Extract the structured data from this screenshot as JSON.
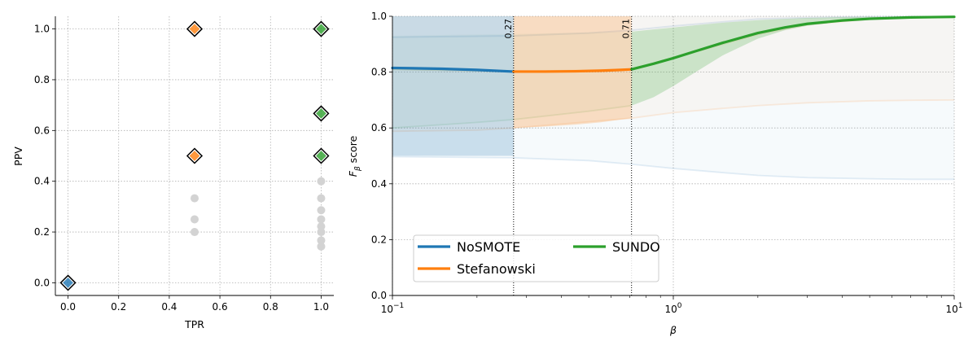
{
  "chart_data": [
    {
      "type": "scatter",
      "xlabel": "TPR",
      "ylabel": "PPV",
      "xlim": [
        -0.05,
        1.05
      ],
      "ylim": [
        -0.05,
        1.05
      ],
      "xticks": [
        "0.0",
        "0.2",
        "0.4",
        "0.6",
        "0.8",
        "1.0"
      ],
      "yticks": [
        "0.0",
        "0.2",
        "0.4",
        "0.6",
        "0.8",
        "1.0"
      ],
      "grid": true,
      "gray_points": [
        [
          0.5,
          0.333
        ],
        [
          0.5,
          0.25
        ],
        [
          0.5,
          0.2
        ],
        [
          1.0,
          0.4
        ],
        [
          1.0,
          0.333
        ],
        [
          1.0,
          0.286
        ],
        [
          1.0,
          0.25
        ],
        [
          1.0,
          0.222
        ],
        [
          1.0,
          0.2
        ],
        [
          1.0,
          0.167
        ],
        [
          1.0,
          0.143
        ]
      ],
      "series": [
        {
          "color": "#1f77b4",
          "points": [
            [
              0.0,
              0.0
            ]
          ]
        },
        {
          "color": "#ff7f0e",
          "points": [
            [
              0.5,
              1.0
            ],
            [
              0.5,
              0.5
            ]
          ]
        },
        {
          "color": "#2ca02c",
          "points": [
            [
              1.0,
              1.0
            ],
            [
              1.0,
              0.667
            ],
            [
              1.0,
              0.5
            ]
          ]
        }
      ]
    },
    {
      "type": "line",
      "xlabel": "β",
      "ylabel": "F",
      "ylabel_sub": "β",
      "ylabel_suffix": " score",
      "xscale": "log",
      "xlim": [
        0.1,
        10
      ],
      "ylim": [
        0.0,
        1.0
      ],
      "xticks": [
        {
          "value": 0.1,
          "base": "10",
          "exp": "−1"
        },
        {
          "value": 1,
          "base": "10",
          "exp": "0"
        },
        {
          "value": 10,
          "base": "10",
          "exp": "1"
        }
      ],
      "yticks": [
        "0.0",
        "0.2",
        "0.4",
        "0.6",
        "0.8",
        "1.0"
      ],
      "grid": true,
      "vlines": [
        {
          "x": 0.27,
          "label": "0.27"
        },
        {
          "x": 0.71,
          "label": "0.71"
        }
      ],
      "legend_position": "lower-left",
      "series": [
        {
          "name": "NoSMOTE",
          "color": "#1f77b4",
          "beta": [
            0.1,
            0.15,
            0.2,
            0.27
          ],
          "mean": [
            0.815,
            0.812,
            0.808,
            0.802
          ],
          "lower": [
            0.5,
            0.5,
            0.5,
            0.5
          ],
          "upper": [
            1.0,
            1.0,
            1.0,
            1.0
          ],
          "faint_beta": [
            0.1,
            0.27,
            0.5,
            0.71,
            1,
            1.5,
            2,
            3,
            5,
            7,
            10
          ],
          "faint_mean": [
            0.925,
            0.93,
            0.94,
            0.95,
            0.965,
            0.98,
            0.99,
            0.995,
            0.998,
            0.999,
            0.999
          ],
          "faint_lower": [
            0.497,
            0.493,
            0.483,
            0.47,
            0.455,
            0.44,
            0.43,
            0.422,
            0.418,
            0.416,
            0.416
          ],
          "faint_upper": [
            1.0,
            1.0,
            1.0,
            1.0,
            1.0,
            1.0,
            1.0,
            1.0,
            1.0,
            1.0,
            1.0
          ]
        },
        {
          "name": "Stefanowski",
          "color": "#ff7f0e",
          "beta": [
            0.27,
            0.35,
            0.45,
            0.55,
            0.65,
            0.71
          ],
          "mean": [
            0.802,
            0.802,
            0.803,
            0.805,
            0.808,
            0.81
          ],
          "lower": [
            0.6,
            0.605,
            0.612,
            0.62,
            0.63,
            0.635
          ],
          "upper": [
            1.0,
            1.0,
            1.0,
            1.0,
            1.0,
            1.0
          ],
          "faint_beta": [
            0.1,
            0.2,
            0.27,
            0.71,
            1,
            1.5,
            2,
            3,
            5,
            7,
            10
          ],
          "faint_mean": [
            0.81,
            0.805,
            0.802,
            0.81,
            0.85,
            0.9,
            0.935,
            0.97,
            0.99,
            0.995,
            0.997
          ],
          "faint_lower": [
            0.588,
            0.592,
            0.6,
            0.635,
            0.655,
            0.67,
            0.68,
            0.69,
            0.697,
            0.699,
            0.7
          ],
          "faint_upper": [
            1.0,
            1.0,
            1.0,
            1.0,
            1.0,
            1.0,
            1.0,
            1.0,
            1.0,
            1.0,
            1.0
          ]
        },
        {
          "name": "SUNDO",
          "color": "#2ca02c",
          "beta": [
            0.71,
            0.85,
            1.0,
            1.2,
            1.5,
            2.0,
            2.5,
            3.0,
            4.0,
            5.0,
            7.0,
            10.0
          ],
          "mean": [
            0.81,
            0.83,
            0.85,
            0.875,
            0.905,
            0.94,
            0.96,
            0.973,
            0.985,
            0.991,
            0.996,
            0.998
          ],
          "lower": [
            0.68,
            0.71,
            0.75,
            0.8,
            0.86,
            0.92,
            0.95,
            0.966,
            0.982,
            0.99,
            0.995,
            0.998
          ],
          "upper": [
            0.945,
            0.953,
            0.96,
            0.968,
            0.977,
            0.986,
            0.991,
            0.994,
            0.997,
            0.998,
            0.999,
            1.0
          ],
          "faint_beta": [
            0.1,
            0.2,
            0.27,
            0.5,
            0.71
          ],
          "faint_mean": [
            0.81,
            0.805,
            0.802,
            0.805,
            0.81
          ],
          "faint_lower": [
            0.6,
            0.62,
            0.63,
            0.66,
            0.68
          ],
          "faint_upper": [
            0.93,
            0.935,
            0.937,
            0.942,
            0.945
          ]
        }
      ]
    }
  ]
}
